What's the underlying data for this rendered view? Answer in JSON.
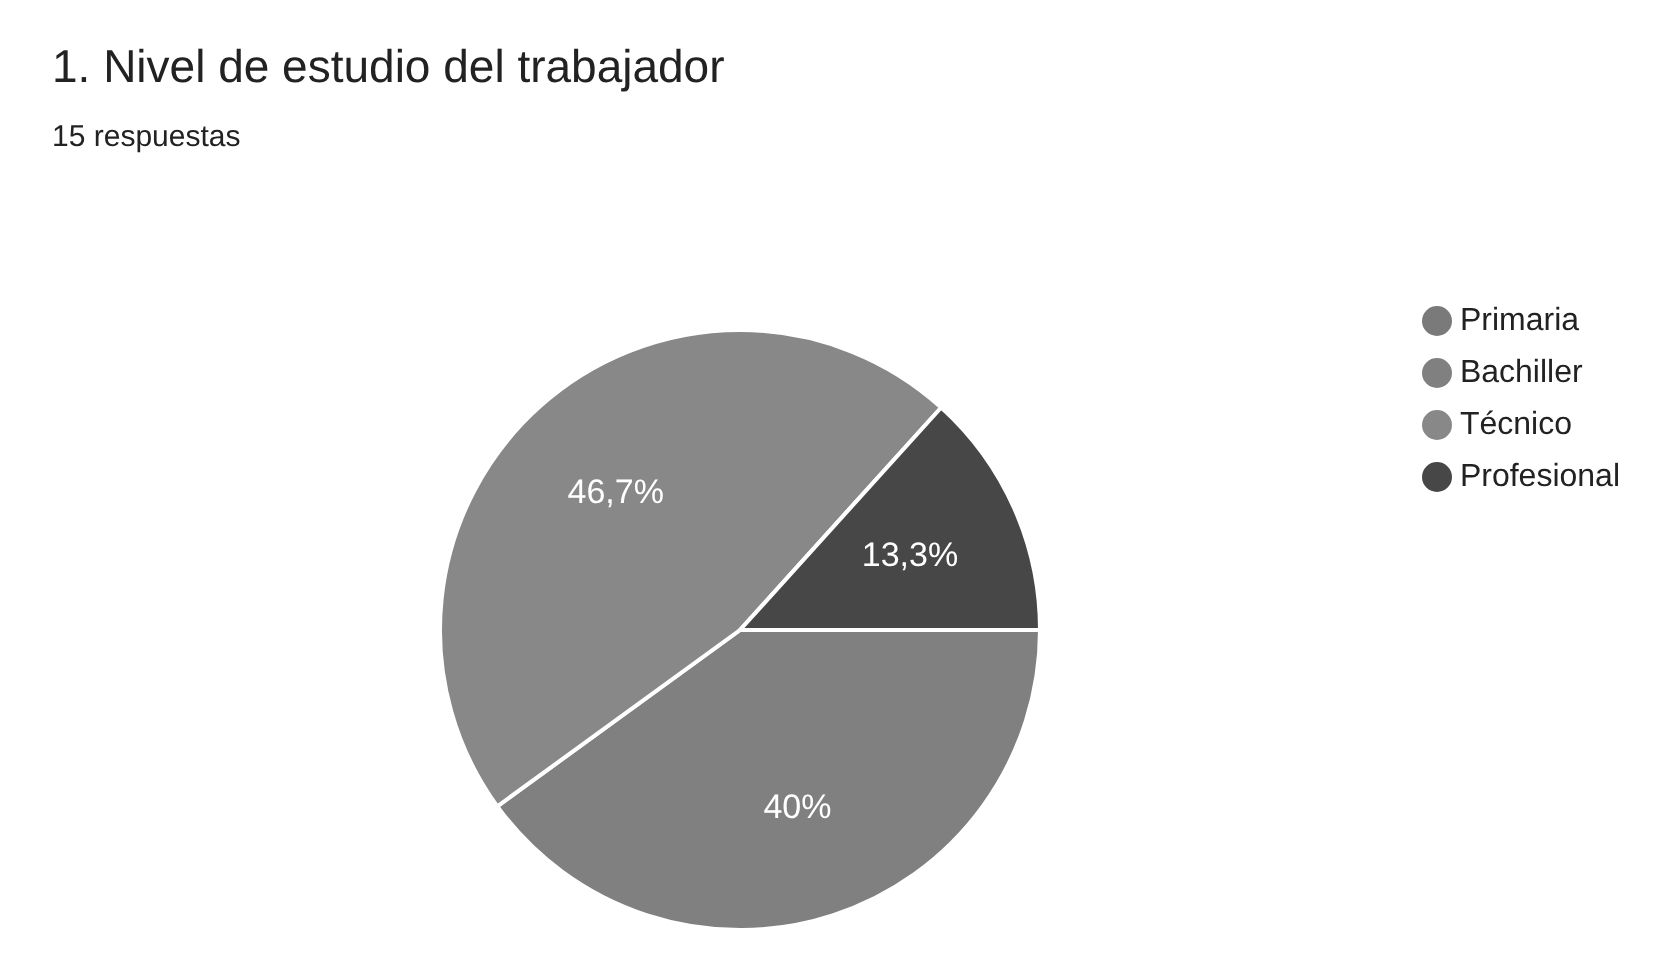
{
  "chart_data": {
    "type": "pie",
    "title": "1. Nivel de estudio del trabajador",
    "subtitle": "15 respuestas",
    "categories": [
      "Primaria",
      "Bachiller",
      "Técnico",
      "Profesional"
    ],
    "values": [
      0,
      40,
      46.7,
      13.3
    ],
    "value_labels": [
      null,
      "40%",
      "46,7%",
      "13,3%"
    ],
    "colors": [
      "#7a7a7a",
      "#808080",
      "#888888",
      "#474747"
    ],
    "legend": "top right"
  }
}
